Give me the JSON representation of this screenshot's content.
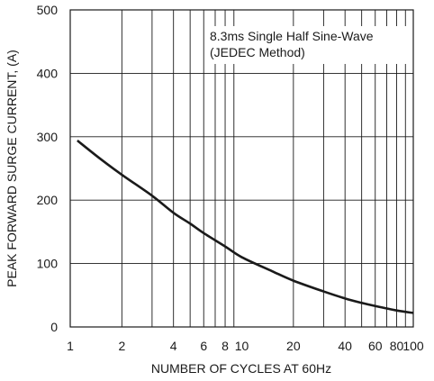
{
  "chart_data": {
    "type": "line",
    "title": "",
    "xlabel": "NUMBER OF CYCLES AT 60Hz",
    "ylabel": "PEAK FORWARD SURGE CURRENT, (A)",
    "xscale": "log",
    "xlim": [
      1,
      100
    ],
    "ylim": [
      0,
      500
    ],
    "xticks": [
      1,
      2,
      4,
      6,
      8,
      10,
      20,
      40,
      60,
      80,
      100
    ],
    "xtick_labels": [
      "1",
      "2",
      "4",
      "6",
      "8",
      "10",
      "20",
      "40",
      "60",
      "80",
      "100"
    ],
    "yticks": [
      0,
      100,
      200,
      300,
      400,
      500
    ],
    "ytick_labels": [
      "0",
      "100",
      "200",
      "300",
      "400",
      "500"
    ],
    "grid": true,
    "annotations": [
      "8.3ms Single Half Sine-Wave",
      "(JEDEC Method)"
    ],
    "series": [
      {
        "x": [
          1.1,
          1.5,
          2,
          3,
          4,
          5,
          6,
          8,
          10,
          15,
          20,
          30,
          40,
          50,
          60,
          80,
          100
        ],
        "values": [
          294,
          265,
          240,
          207,
          180,
          163,
          148,
          127,
          110,
          88,
          73,
          56,
          45,
          38,
          33,
          26,
          22
        ]
      }
    ]
  }
}
